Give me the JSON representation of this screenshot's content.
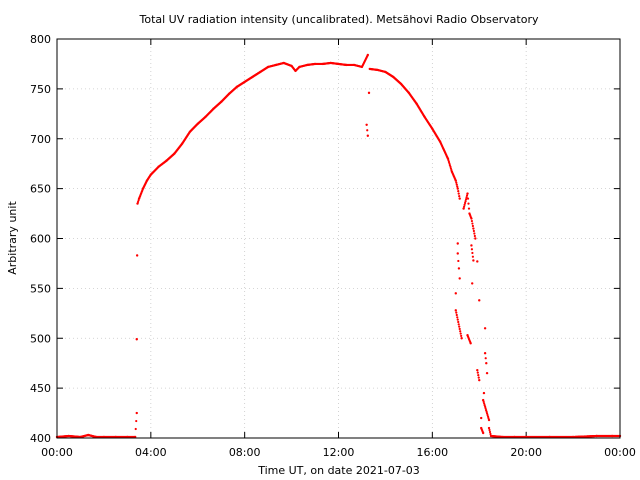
{
  "chart_data": {
    "type": "scatter",
    "title": "Total UV radiation intensity (uncalibrated). Metsähovi Radio Observatory",
    "xlabel": "Time UT, on date 2021-07-03",
    "ylabel": "Arbitrary unit",
    "xlim": [
      "00:00",
      "24:00"
    ],
    "ylim": [
      400,
      800
    ],
    "x_ticks": [
      "00:00",
      "04:00",
      "08:00",
      "12:00",
      "16:00",
      "20:00",
      "00:00"
    ],
    "y_ticks": [
      400,
      450,
      500,
      550,
      600,
      650,
      700,
      750,
      800
    ],
    "grid": true,
    "marker_color": "#ff0000",
    "series": [
      {
        "points": [
          [
            "00:00",
            401
          ],
          [
            "00:30",
            402
          ],
          [
            "01:00",
            401
          ],
          [
            "01:20",
            403
          ],
          [
            "01:40",
            401
          ],
          [
            "02:00",
            401
          ],
          [
            "02:30",
            401
          ],
          [
            "03:00",
            401
          ],
          [
            "03:20",
            401
          ],
          [
            "03:24",
            425
          ],
          [
            "03:24",
            499
          ],
          [
            "03:25",
            583
          ],
          [
            "03:26",
            635
          ],
          [
            "03:30",
            640
          ],
          [
            "03:40",
            650
          ],
          [
            "03:50",
            658
          ],
          [
            "04:00",
            664
          ],
          [
            "04:20",
            672
          ],
          [
            "04:40",
            678
          ],
          [
            "05:00",
            685
          ],
          [
            "05:20",
            695
          ],
          [
            "05:40",
            707
          ],
          [
            "06:00",
            715
          ],
          [
            "06:20",
            722
          ],
          [
            "06:40",
            730
          ],
          [
            "07:00",
            737
          ],
          [
            "07:20",
            745
          ],
          [
            "07:40",
            752
          ],
          [
            "08:00",
            757
          ],
          [
            "08:20",
            762
          ],
          [
            "08:40",
            767
          ],
          [
            "09:00",
            772
          ],
          [
            "09:20",
            774
          ],
          [
            "09:40",
            776
          ],
          [
            "10:00",
            773
          ],
          [
            "10:10",
            768
          ],
          [
            "10:20",
            772
          ],
          [
            "10:40",
            774
          ],
          [
            "11:00",
            775
          ],
          [
            "11:20",
            775
          ],
          [
            "11:40",
            776
          ],
          [
            "12:00",
            775
          ],
          [
            "12:20",
            774
          ],
          [
            "12:40",
            774
          ],
          [
            "13:00",
            772
          ],
          [
            "13:15",
            784
          ],
          [
            "13:12",
            714
          ],
          [
            "13:15",
            703
          ],
          [
            "13:18",
            746
          ],
          [
            "13:20",
            770
          ],
          [
            "13:40",
            769
          ],
          [
            "14:00",
            767
          ],
          [
            "14:20",
            762
          ],
          [
            "14:40",
            755
          ],
          [
            "15:00",
            746
          ],
          [
            "15:20",
            735
          ],
          [
            "15:40",
            722
          ],
          [
            "16:00",
            710
          ],
          [
            "16:20",
            697
          ],
          [
            "16:40",
            680
          ],
          [
            "16:50",
            667
          ],
          [
            "17:00",
            658
          ],
          [
            "17:05",
            650
          ],
          [
            "17:10",
            640
          ],
          [
            "17:05",
            595
          ],
          [
            "17:05",
            585
          ],
          [
            "17:08",
            570
          ],
          [
            "17:10",
            560
          ],
          [
            "17:00",
            545
          ],
          [
            "17:00",
            528
          ],
          [
            "17:15",
            500
          ],
          [
            "17:20",
            630
          ],
          [
            "17:30",
            645
          ],
          [
            "17:35",
            625
          ],
          [
            "17:40",
            620
          ],
          [
            "17:45",
            610
          ],
          [
            "17:50",
            600
          ],
          [
            "17:40",
            593
          ],
          [
            "17:45",
            578
          ],
          [
            "17:42",
            555
          ],
          [
            "17:30",
            503
          ],
          [
            "17:38",
            495
          ],
          [
            "17:55",
            577
          ],
          [
            "18:00",
            538
          ],
          [
            "17:55",
            468
          ],
          [
            "18:00",
            458
          ],
          [
            "18:05",
            420
          ],
          [
            "18:05",
            410
          ],
          [
            "18:10",
            405
          ],
          [
            "18:15",
            510
          ],
          [
            "18:15",
            485
          ],
          [
            "18:18",
            475
          ],
          [
            "18:20",
            465
          ],
          [
            "18:12",
            445
          ],
          [
            "18:10",
            438
          ],
          [
            "18:25",
            418
          ],
          [
            "18:25",
            410
          ],
          [
            "18:30",
            402
          ],
          [
            "19:00",
            401
          ],
          [
            "19:30",
            401
          ],
          [
            "20:00",
            401
          ],
          [
            "21:00",
            401
          ],
          [
            "22:00",
            401
          ],
          [
            "23:00",
            402
          ],
          [
            "23:40",
            402
          ],
          [
            "24:00",
            402
          ]
        ]
      }
    ]
  }
}
